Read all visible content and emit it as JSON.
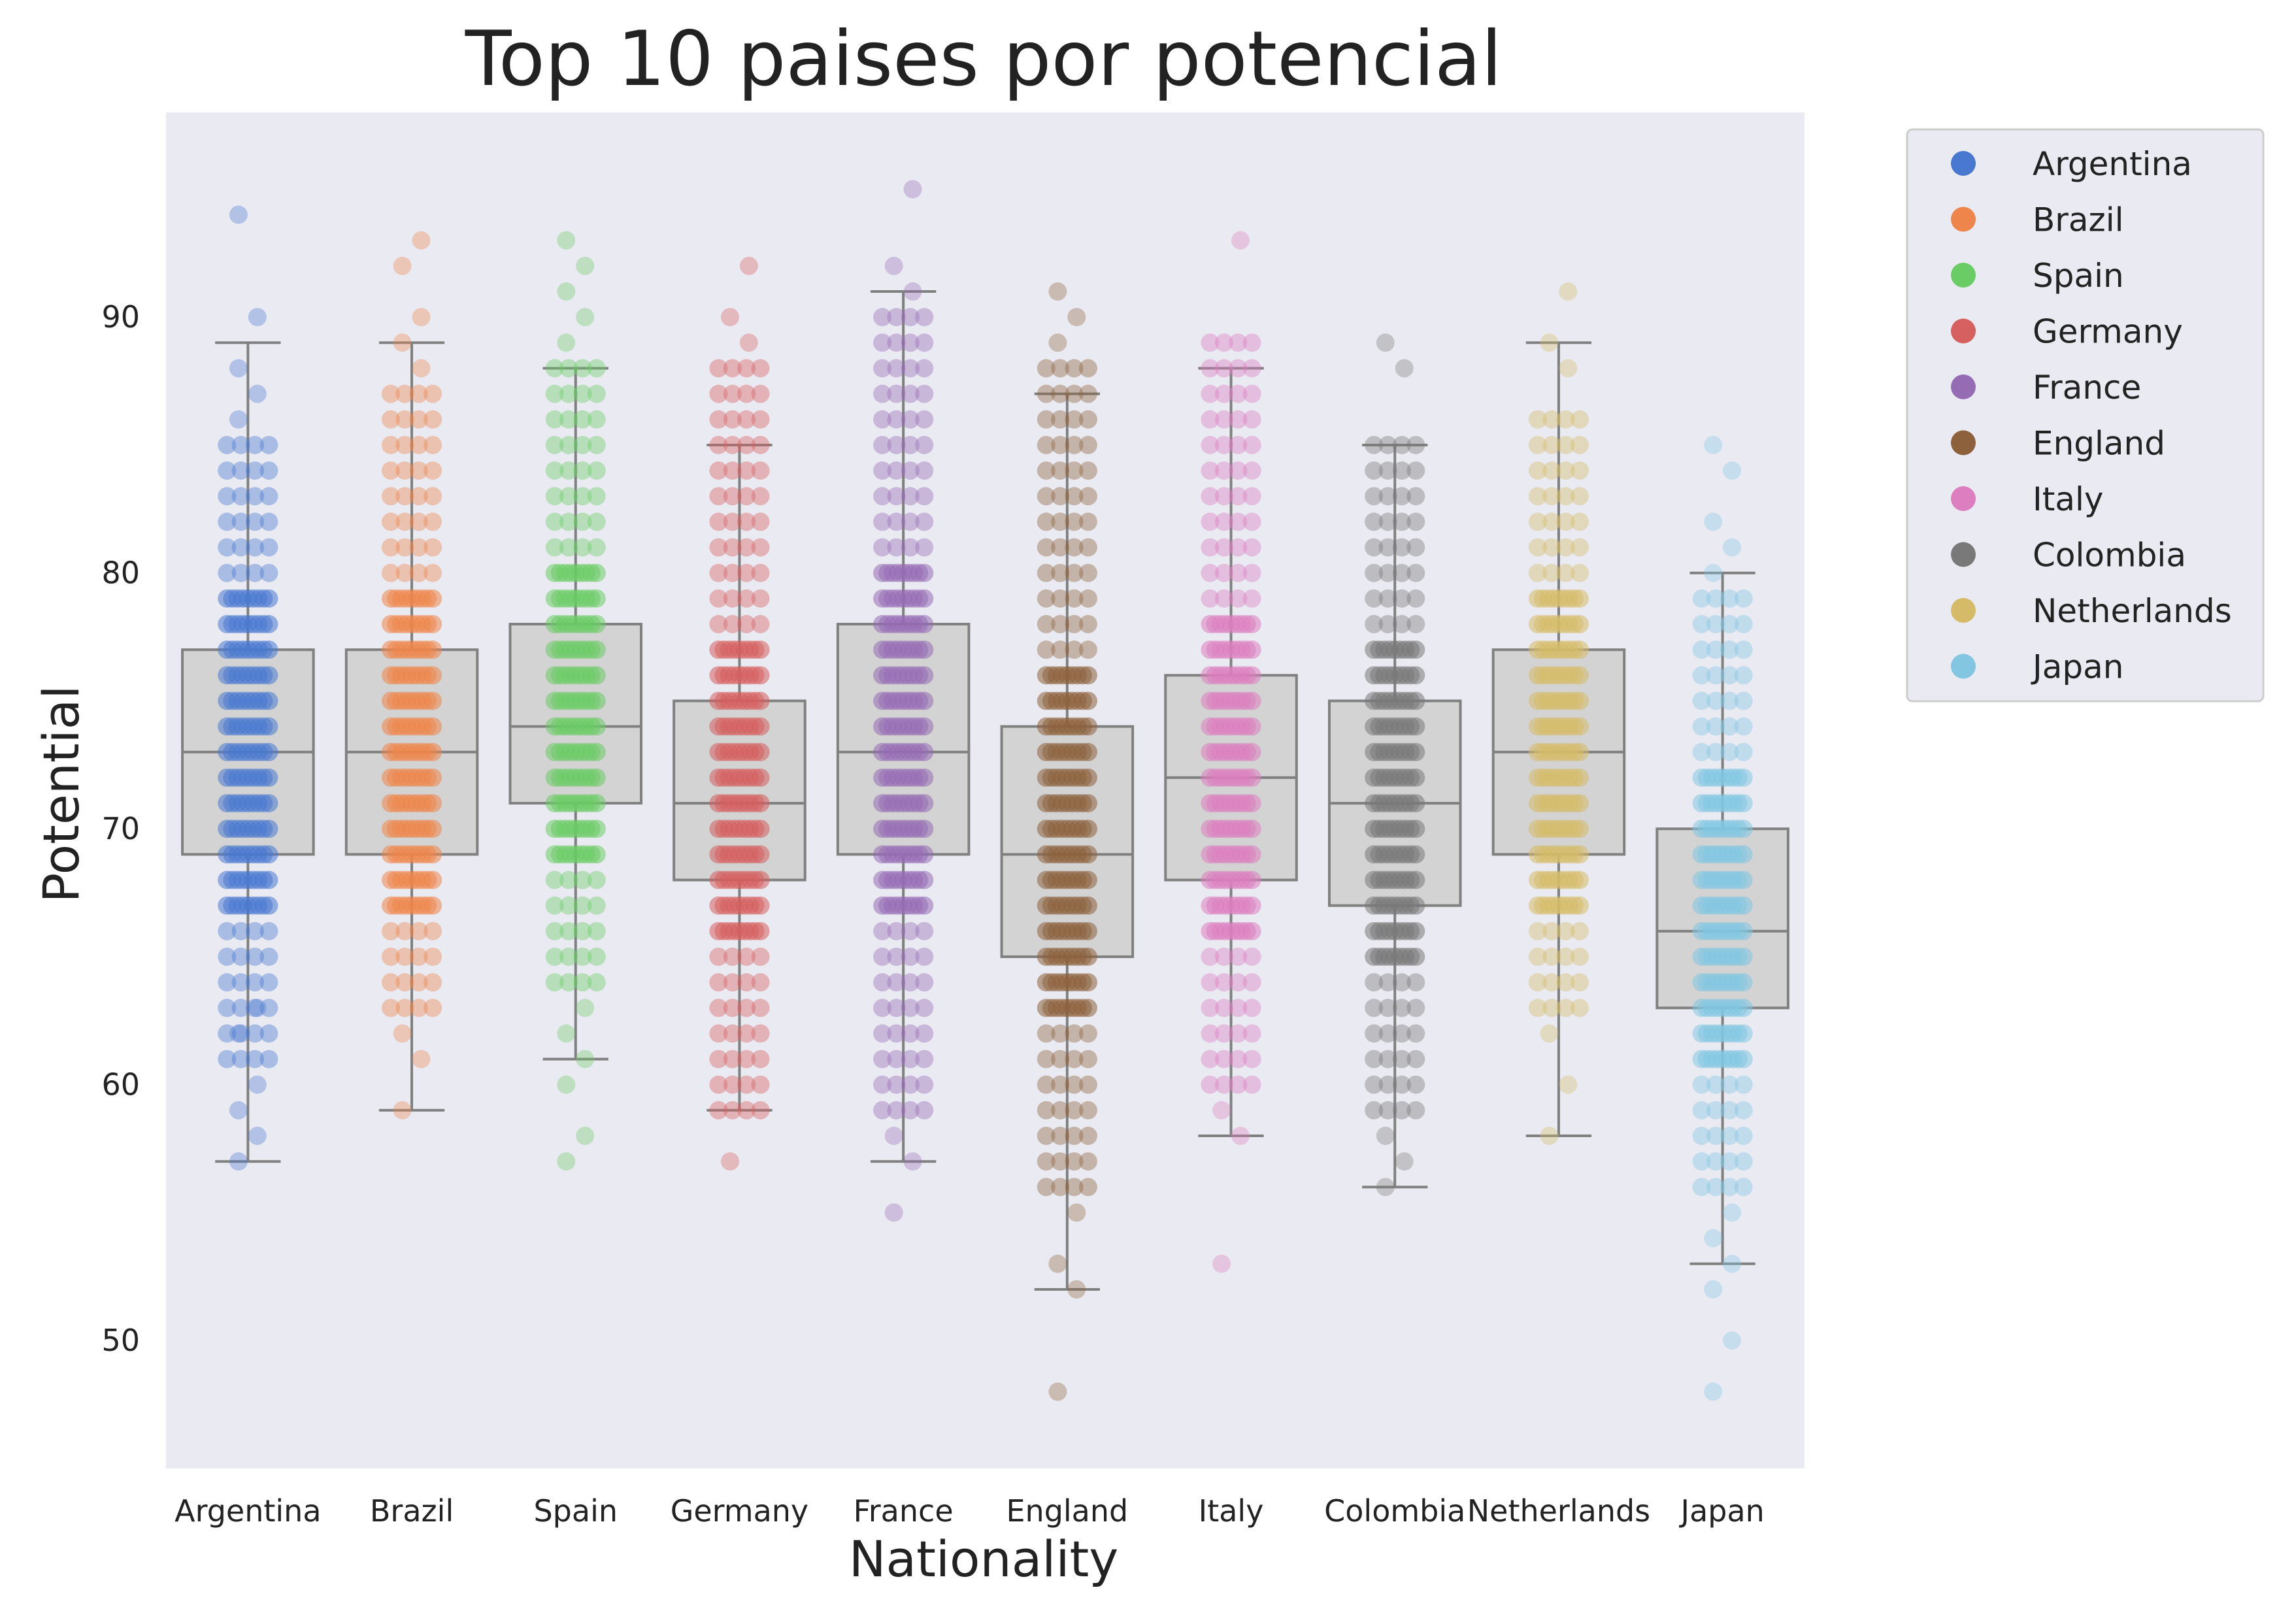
{
  "chart_data": {
    "type": "box-strip",
    "title": "Top 10 paises por potencial",
    "xlabel": "Nationality",
    "ylabel": "Potential",
    "ylim": [
      45,
      98
    ],
    "yticks": [
      50,
      60,
      70,
      80,
      90
    ],
    "grid": false,
    "background": "#eaeaf2",
    "box_color": "#d3d3d3",
    "box_edge_color": "#808080",
    "legend": {
      "placement": "outside-upper-right",
      "entries": [
        "Argentina",
        "Brazil",
        "Spain",
        "Germany",
        "France",
        "England",
        "Italy",
        "Colombia",
        "Netherlands",
        "Japan"
      ]
    },
    "categories": [
      "Argentina",
      "Brazil",
      "Spain",
      "Germany",
      "France",
      "England",
      "Italy",
      "Colombia",
      "Netherlands",
      "Japan"
    ],
    "series": [
      {
        "name": "Argentina",
        "color": "#4878d0",
        "box": {
          "q1": 69,
          "median": 73,
          "q3": 77,
          "whisker_low": 57,
          "whisker_high": 89
        },
        "dense": [
          61,
          85
        ],
        "outliers": [
          57,
          58,
          59,
          60,
          62,
          63,
          86,
          87,
          88,
          90,
          94
        ]
      },
      {
        "name": "Brazil",
        "color": "#ee854a",
        "box": {
          "q1": 69,
          "median": 73,
          "q3": 77,
          "whisker_low": 59,
          "whisker_high": 89
        },
        "dense": [
          63,
          87
        ],
        "outliers": [
          59,
          61,
          62,
          88,
          89,
          90,
          92,
          93
        ]
      },
      {
        "name": "Spain",
        "color": "#6acc64",
        "box": {
          "q1": 71,
          "median": 74,
          "q3": 78,
          "whisker_low": 61,
          "whisker_high": 88
        },
        "dense": [
          64,
          88
        ],
        "outliers": [
          57,
          58,
          60,
          61,
          62,
          63,
          89,
          90,
          91,
          92,
          93
        ]
      },
      {
        "name": "Germany",
        "color": "#d65f5f",
        "box": {
          "q1": 68,
          "median": 71,
          "q3": 75,
          "whisker_low": 59,
          "whisker_high": 85
        },
        "dense": [
          59,
          88
        ],
        "outliers": [
          57,
          89,
          90,
          92
        ]
      },
      {
        "name": "France",
        "color": "#956cb4",
        "box": {
          "q1": 69,
          "median": 73,
          "q3": 78,
          "whisker_low": 57,
          "whisker_high": 91
        },
        "dense": [
          59,
          90
        ],
        "outliers": [
          55,
          57,
          58,
          91,
          92,
          95
        ]
      },
      {
        "name": "England",
        "color": "#8c613c",
        "box": {
          "q1": 65,
          "median": 69,
          "q3": 74,
          "whisker_low": 52,
          "whisker_high": 87
        },
        "dense": [
          56,
          88
        ],
        "outliers": [
          48,
          52,
          53,
          55,
          89,
          90,
          91
        ]
      },
      {
        "name": "Italy",
        "color": "#dc7ec0",
        "box": {
          "q1": 68,
          "median": 72,
          "q3": 76,
          "whisker_low": 58,
          "whisker_high": 88
        },
        "dense": [
          60,
          89
        ],
        "outliers": [
          53,
          58,
          59,
          93
        ]
      },
      {
        "name": "Colombia",
        "color": "#797979",
        "box": {
          "q1": 67,
          "median": 71,
          "q3": 75,
          "whisker_low": 56,
          "whisker_high": 85
        },
        "dense": [
          59,
          85
        ],
        "outliers": [
          56,
          57,
          58,
          88,
          89
        ]
      },
      {
        "name": "Netherlands",
        "color": "#d5bb67",
        "box": {
          "q1": 69,
          "median": 73,
          "q3": 77,
          "whisker_low": 58,
          "whisker_high": 89
        },
        "dense": [
          63,
          86
        ],
        "outliers": [
          58,
          60,
          62,
          88,
          89,
          91
        ]
      },
      {
        "name": "Japan",
        "color": "#82c6e2",
        "box": {
          "q1": 63,
          "median": 66,
          "q3": 70,
          "whisker_low": 53,
          "whisker_high": 80
        },
        "dense": [
          56,
          79
        ],
        "outliers": [
          48,
          50,
          52,
          53,
          54,
          55,
          80,
          81,
          82,
          84,
          85
        ]
      }
    ]
  }
}
